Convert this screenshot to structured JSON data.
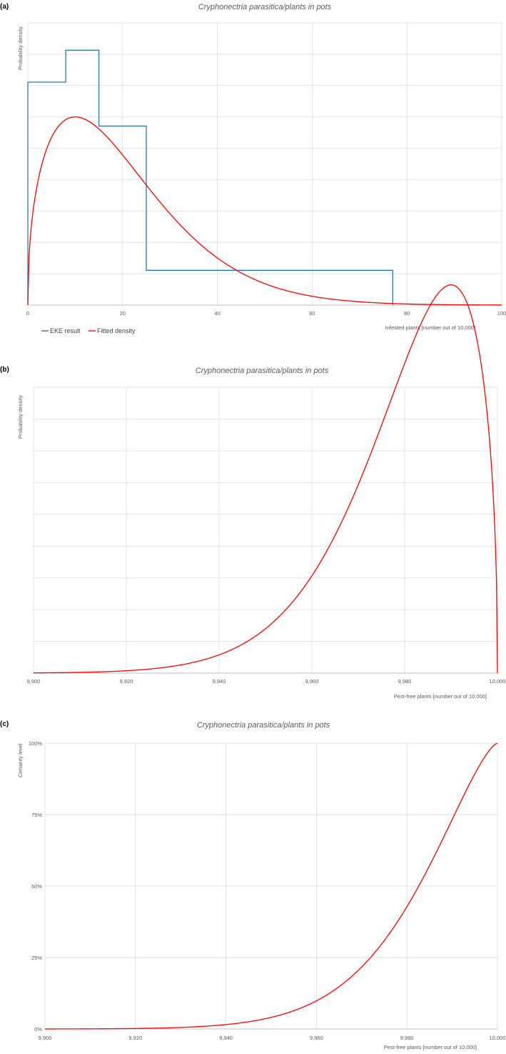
{
  "colors": {
    "eke": "#2e75b6",
    "fitted": "#ff0000",
    "grid": "#d9d9d9",
    "axis": "#bfbfbf"
  },
  "chart_data": [
    {
      "panel": "(a)",
      "type": "line",
      "title": "Cryphonectria parasitica/plants in pots",
      "xlabel": "Infested plants [number out of 10,000]",
      "ylabel": "Probability density",
      "xlim": [
        0,
        100
      ],
      "xticks": [
        "0",
        "20",
        "40",
        "60",
        "80",
        "100"
      ],
      "grid": true,
      "legend": {
        "position": "bottom-left",
        "entries": [
          "EKE result",
          "Fitted density"
        ]
      },
      "series": [
        {
          "name": "EKE result",
          "style": "step",
          "x": [
            0,
            0,
            8,
            8,
            15,
            15,
            25,
            25,
            77,
            77
          ],
          "y": [
            0,
            0.0391,
            0.0391,
            0.0447,
            0.0447,
            0.0314,
            0.0314,
            0.0061,
            0.0061,
            0
          ]
        },
        {
          "name": "Fitted density",
          "style": "curve",
          "dist": "weibull",
          "shape": 1.45,
          "scale": 22.4
        }
      ]
    },
    {
      "panel": "(b)",
      "type": "line",
      "title": "Cryphonectria parasitica/plants in pots",
      "xlabel": "Pest-free plants [number out of 10,000]",
      "ylabel": "Probability density",
      "xlim": [
        9900,
        10000
      ],
      "xticks": [
        "9,900",
        "9,920",
        "9,940",
        "9,960",
        "9,980",
        "10,000"
      ],
      "grid": true,
      "series": [
        {
          "name": "",
          "style": "curve",
          "dist": "weibull-mirror",
          "shape": 1.45,
          "scale": 22.4,
          "base": 10000
        }
      ]
    },
    {
      "panel": "(c)",
      "type": "line",
      "title": "Cryphonectria parasitica/plants in pots",
      "xlabel": "Pest-free plants [number out of 10,000]",
      "ylabel": "Certainty level",
      "xlim": [
        9900,
        10000
      ],
      "ylim": [
        0,
        1
      ],
      "xticks": [
        "9,900",
        "9,920",
        "9,940",
        "9,960",
        "9,980",
        "10,000"
      ],
      "yticks": [
        "0%",
        "25%",
        "50%",
        "75%",
        "100%"
      ],
      "grid": true,
      "series": [
        {
          "name": "",
          "style": "curve",
          "dist": "weibull-mirror-cdf",
          "shape": 1.45,
          "scale": 22.4,
          "base": 10000
        }
      ]
    }
  ]
}
